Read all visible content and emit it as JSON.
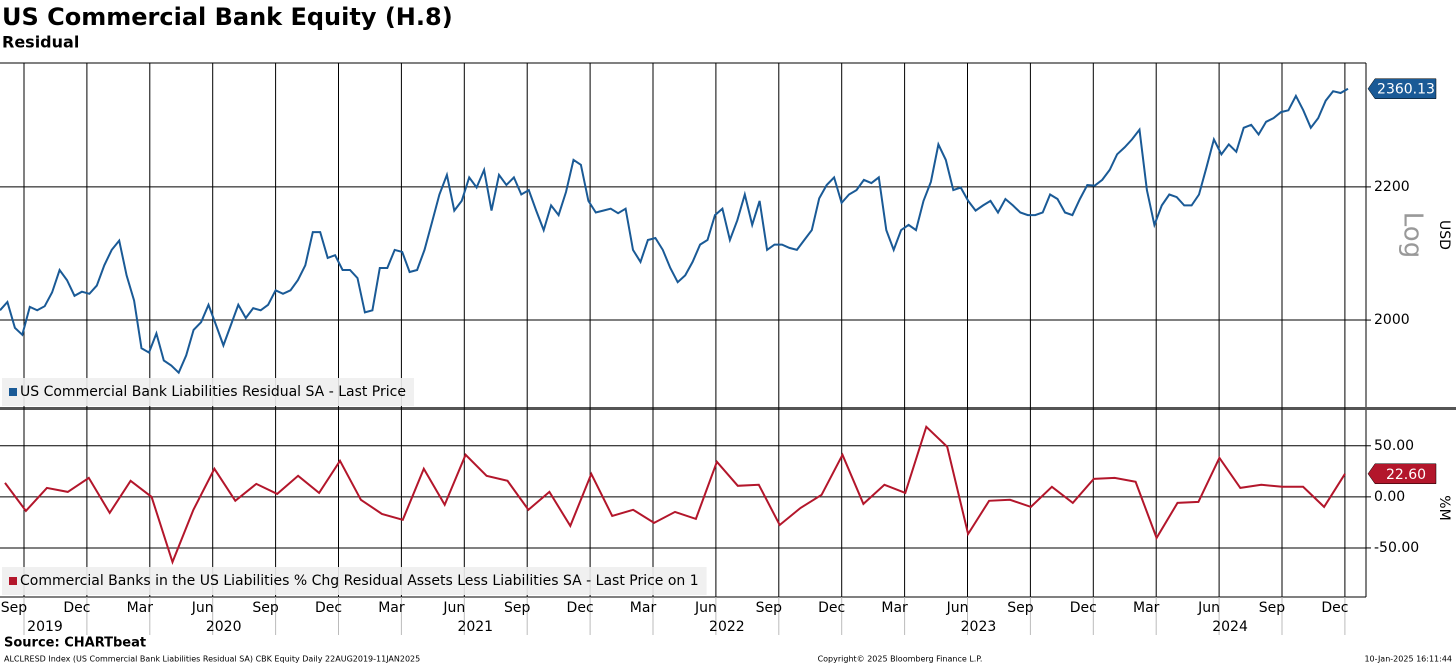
{
  "header": {
    "title": "US Commercial Bank Equity (H.8)",
    "subtitle": "Residual"
  },
  "chart_data": [
    {
      "type": "line",
      "log_scale": true,
      "grid": true,
      "scale_label": "Log",
      "y_axis_label": "USD",
      "ylim": [
        1878,
        2404
      ],
      "yticks": [
        2000,
        2200
      ],
      "series": [
        {
          "name": "US Commercial Bank Liabilities Residual SA - Last Price",
          "color": "#1a5a96",
          "values": [
            2014,
            2026,
            1989,
            1979,
            2019,
            2014,
            2020,
            2040,
            2073,
            2058,
            2035,
            2041,
            2038,
            2050,
            2080,
            2103,
            2117,
            2065,
            2028,
            1960,
            1954,
            1981,
            1943,
            1936,
            1926,
            1950,
            1986,
            1997,
            2022,
            1993,
            1964,
            1993,
            2022,
            2003,
            2017,
            2014,
            2022,
            2043,
            2038,
            2043,
            2058,
            2080,
            2130,
            2130,
            2091,
            2095,
            2073,
            2073,
            2061,
            2011,
            2014,
            2076,
            2076,
            2103,
            2100,
            2070,
            2073,
            2103,
            2145,
            2188,
            2219,
            2163,
            2178,
            2215,
            2199,
            2227,
            2163,
            2219,
            2203,
            2215,
            2188,
            2195,
            2163,
            2133,
            2171,
            2156,
            2192,
            2243,
            2235,
            2178,
            2160,
            2163,
            2166,
            2159,
            2166,
            2103,
            2085,
            2118,
            2121,
            2103,
            2076,
            2055,
            2065,
            2085,
            2111,
            2118,
            2156,
            2166,
            2118,
            2148,
            2188,
            2141,
            2178,
            2103,
            2111,
            2111,
            2106,
            2103,
            2118,
            2133,
            2182,
            2203,
            2215,
            2175,
            2188,
            2195,
            2211,
            2206,
            2215,
            2133,
            2103,
            2133,
            2141,
            2133,
            2178,
            2208,
            2268,
            2243,
            2195,
            2199,
            2178,
            2163,
            2171,
            2178,
            2160,
            2181,
            2171,
            2160,
            2156,
            2156,
            2160,
            2188,
            2181,
            2160,
            2156,
            2181,
            2203,
            2202,
            2211,
            2227,
            2252,
            2263,
            2276,
            2292,
            2195,
            2141,
            2171,
            2188,
            2184,
            2171,
            2171,
            2188,
            2231,
            2276,
            2252,
            2268,
            2256,
            2295,
            2300,
            2284,
            2305,
            2311,
            2321,
            2324,
            2348,
            2324,
            2295,
            2311,
            2340,
            2356,
            2353,
            2360.13
          ]
        }
      ]
    },
    {
      "type": "line",
      "grid": true,
      "y_axis_label": "%M",
      "ylim": [
        -98,
        85
      ],
      "yticks": [
        {
          "value": 50,
          "label": "50.00"
        },
        {
          "value": 0,
          "label": "0.00"
        },
        {
          "value": -50,
          "label": "-50.00"
        }
      ],
      "series": [
        {
          "name": "Commercial Banks in the US Liabilities % Chg Residual Assets Less Liabilities SA - Last Price on 1",
          "color": "#b3162b",
          "values": [
            13.7,
            -13.7,
            8.8,
            4.9,
            18.6,
            -15.7,
            15.7,
            0,
            -63.7,
            -12.7,
            27.5,
            -3.9,
            12.7,
            2.9,
            20.6,
            3.9,
            35.3,
            -2.9,
            -16.7,
            -22.5,
            27.5,
            -7.8,
            41.2,
            20.6,
            15.7,
            -12.7,
            4.9,
            -28.4,
            22.5,
            -18.6,
            -12.7,
            -25.5,
            -14.7,
            -21.6,
            34.3,
            10.8,
            11.8,
            -27.5,
            -10.8,
            2.0,
            41.2,
            -6.9,
            11.8,
            3.9,
            68.6,
            49.0,
            -36.3,
            -3.9,
            -2.9,
            -9.8,
            9.8,
            -5.9,
            17.6,
            18.6,
            14.7,
            -40.2,
            -5.9,
            -4.9,
            38.2,
            8.8,
            11.8,
            9.8,
            9.8,
            -9.8,
            22.6
          ],
          "value_labels": [
            null,
            null,
            null,
            null,
            null,
            null,
            null,
            null,
            null,
            null,
            null,
            null,
            null,
            null,
            null,
            null,
            null,
            null,
            null,
            null,
            null,
            null,
            null,
            null,
            null,
            null,
            null,
            null,
            null,
            null,
            null,
            null,
            null,
            null,
            null,
            null,
            null,
            null,
            null,
            null,
            null,
            null,
            null,
            null,
            null,
            null,
            null,
            null,
            null,
            null,
            null,
            null,
            null,
            null,
            null,
            null,
            null,
            null,
            null,
            null,
            null,
            null,
            null,
            null,
            "22.60"
          ]
        }
      ]
    }
  ],
  "x_axis": {
    "months": [
      "Sep",
      "Dec",
      "Mar",
      "Jun",
      "Sep",
      "Dec",
      "Mar",
      "Jun",
      "Sep",
      "Dec",
      "Mar",
      "Jun",
      "Sep",
      "Dec",
      "Mar",
      "Jun",
      "Sep",
      "Dec",
      "Mar",
      "Jun",
      "Sep",
      "Dec"
    ],
    "years": [
      "2019",
      "2020",
      "2021",
      "2022",
      "2023",
      "2024"
    ]
  },
  "footer": {
    "source": "Source: CHARTbeat",
    "description": "ALCLRESD Index (US Commercial Bank Liabilities Residual SA) CBK Equity  Daily 22AUG2019-11JAN2025",
    "copyright": "Copyright© 2025 Bloomberg Finance L.P.",
    "timestamp": "10-Jan-2025 16:11:44"
  }
}
